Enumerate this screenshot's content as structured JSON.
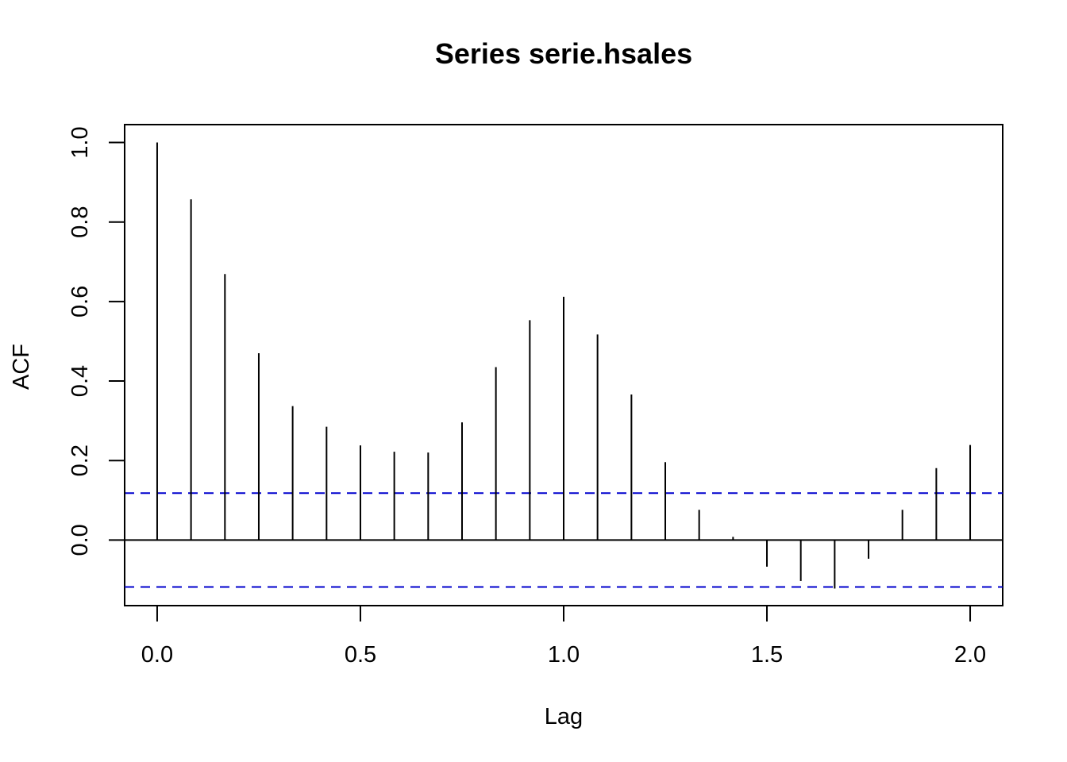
{
  "chart_data": {
    "type": "bar",
    "title": "Series  serie.hsales",
    "xlabel": "Lag",
    "ylabel": "ACF",
    "xlim": [
      -0.08,
      2.08
    ],
    "ylim": [
      -0.165,
      1.045
    ],
    "x_ticks": [
      "0.0",
      "0.5",
      "1.0",
      "1.5",
      "2.0"
    ],
    "y_ticks": [
      "0.0",
      "0.2",
      "0.4",
      "0.6",
      "0.8",
      "1.0"
    ],
    "lags": [
      0.0,
      0.0833,
      0.1667,
      0.25,
      0.3333,
      0.4167,
      0.5,
      0.5833,
      0.6667,
      0.75,
      0.8333,
      0.9167,
      1.0,
      1.0833,
      1.1667,
      1.25,
      1.3333,
      1.4167,
      1.5,
      1.5833,
      1.6667,
      1.75,
      1.8333,
      1.9167,
      2.0
    ],
    "acf": [
      1.0,
      0.857,
      0.669,
      0.47,
      0.337,
      0.285,
      0.238,
      0.222,
      0.22,
      0.296,
      0.435,
      0.553,
      0.612,
      0.517,
      0.366,
      0.196,
      0.076,
      0.008,
      -0.067,
      -0.103,
      -0.122,
      -0.047,
      0.076,
      0.181,
      0.239
    ],
    "confidence_bound": 0.118,
    "colors": {
      "bars": "#000000",
      "confidence": "#0000cd",
      "axes": "#000000"
    },
    "grid": false
  }
}
